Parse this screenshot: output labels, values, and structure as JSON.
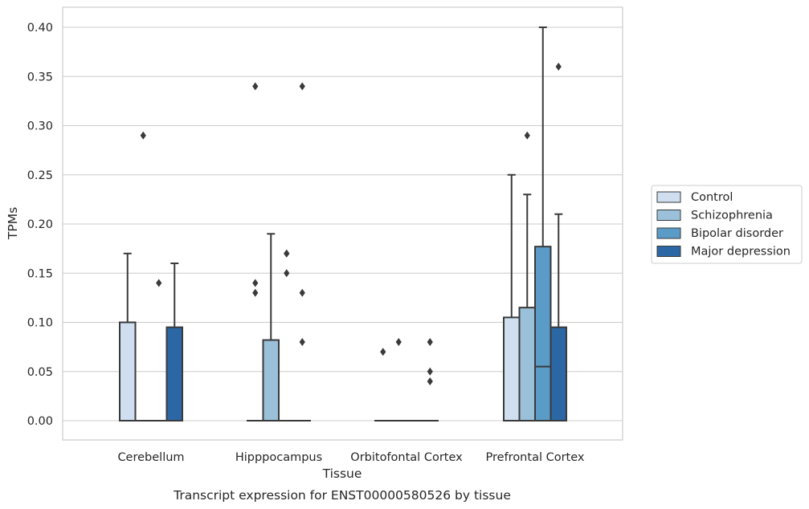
{
  "caption": "Transcript expression for ENST00000580526 by tissue",
  "chart_data": {
    "type": "box",
    "xlabel": "Tissue",
    "ylabel": "TPMs",
    "ylim": [
      -0.02,
      0.42
    ],
    "yticks": [
      0.0,
      0.05,
      0.1,
      0.15,
      0.2,
      0.25,
      0.3,
      0.35,
      0.4
    ],
    "ytick_labels": [
      "0.00",
      "0.05",
      "0.10",
      "0.15",
      "0.20",
      "0.25",
      "0.30",
      "0.35",
      "0.40"
    ],
    "categories": [
      "Cerebellum",
      "Hipppocampus",
      "Orbitofontal Cortex",
      "Prefrontal Cortex"
    ],
    "grid": "horizontal",
    "legend_position": "right",
    "series": [
      {
        "name": "Control",
        "color": "#cfdff0",
        "boxes": [
          {
            "q1": 0.0,
            "median": 0.0,
            "q3": 0.1,
            "whisker_low": 0.0,
            "whisker_high": 0.17,
            "outliers": []
          },
          {
            "q1": 0.0,
            "median": 0.0,
            "q3": 0.0,
            "whisker_low": 0.0,
            "whisker_high": 0.0,
            "outliers": [
              0.34,
              0.14,
              0.13
            ]
          },
          {
            "q1": 0.0,
            "median": 0.0,
            "q3": 0.0,
            "whisker_low": 0.0,
            "whisker_high": 0.0,
            "outliers": [
              0.07
            ]
          },
          {
            "q1": 0.0,
            "median": 0.0,
            "q3": 0.105,
            "whisker_low": 0.0,
            "whisker_high": 0.25,
            "outliers": []
          }
        ]
      },
      {
        "name": "Schizophrenia",
        "color": "#9bc1da",
        "boxes": [
          {
            "q1": 0.0,
            "median": 0.0,
            "q3": 0.0,
            "whisker_low": 0.0,
            "whisker_high": 0.0,
            "outliers": [
              0.29
            ]
          },
          {
            "q1": 0.0,
            "median": 0.0,
            "q3": 0.082,
            "whisker_low": 0.0,
            "whisker_high": 0.19,
            "outliers": []
          },
          {
            "q1": 0.0,
            "median": 0.0,
            "q3": 0.0,
            "whisker_low": 0.0,
            "whisker_high": 0.0,
            "outliers": [
              0.08
            ]
          },
          {
            "q1": 0.0,
            "median": 0.0,
            "q3": 0.115,
            "whisker_low": 0.0,
            "whisker_high": 0.23,
            "outliers": [
              0.29
            ]
          }
        ]
      },
      {
        "name": "Bipolar disorder",
        "color": "#5a9bc8",
        "boxes": [
          {
            "q1": 0.0,
            "median": 0.0,
            "q3": 0.0,
            "whisker_low": 0.0,
            "whisker_high": 0.0,
            "outliers": [
              0.14
            ]
          },
          {
            "q1": 0.0,
            "median": 0.0,
            "q3": 0.0,
            "whisker_low": 0.0,
            "whisker_high": 0.0,
            "outliers": [
              0.17,
              0.17,
              0.15
            ]
          },
          {
            "q1": 0.0,
            "median": 0.0,
            "q3": 0.0,
            "whisker_low": 0.0,
            "whisker_high": 0.0,
            "outliers": []
          },
          {
            "q1": 0.0,
            "median": 0.055,
            "q3": 0.177,
            "whisker_low": 0.0,
            "whisker_high": 0.4,
            "outliers": []
          }
        ]
      },
      {
        "name": "Major depression",
        "color": "#2b67a4",
        "boxes": [
          {
            "q1": 0.0,
            "median": 0.0,
            "q3": 0.095,
            "whisker_low": 0.0,
            "whisker_high": 0.16,
            "outliers": []
          },
          {
            "q1": 0.0,
            "median": 0.0,
            "q3": 0.0,
            "whisker_low": 0.0,
            "whisker_high": 0.0,
            "outliers": [
              0.34,
              0.13,
              0.08
            ]
          },
          {
            "q1": 0.0,
            "median": 0.0,
            "q3": 0.0,
            "whisker_low": 0.0,
            "whisker_high": 0.0,
            "outliers": [
              0.08,
              0.05,
              0.04
            ]
          },
          {
            "q1": 0.0,
            "median": 0.0,
            "q3": 0.095,
            "whisker_low": 0.0,
            "whisker_high": 0.21,
            "outliers": [
              0.36
            ]
          }
        ]
      }
    ]
  }
}
